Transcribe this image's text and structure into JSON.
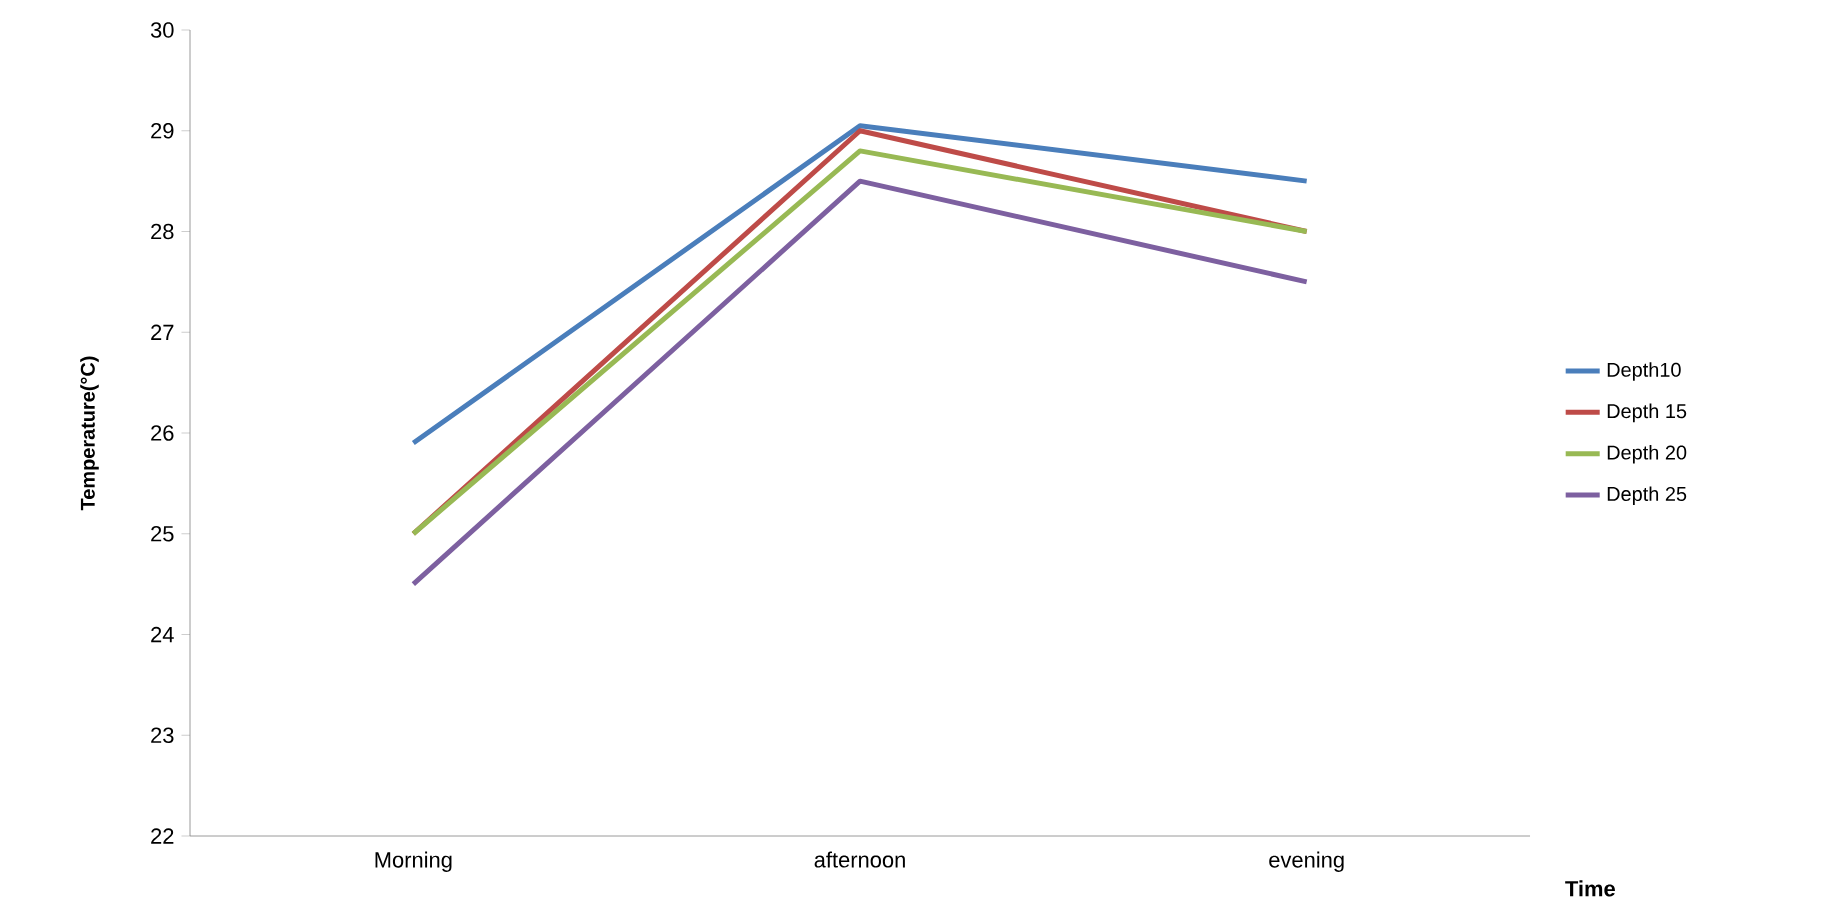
{
  "chart_data": {
    "type": "line",
    "xlabel": "Time",
    "ylabel": "Temperature(°C)",
    "categories": [
      "Morning",
      "afternoon",
      "evening"
    ],
    "series": [
      {
        "name": "Depth10",
        "color": "#4a7ebb",
        "values": [
          25.9,
          29.05,
          28.5
        ]
      },
      {
        "name": "Depth 15",
        "color": "#be4b48",
        "values": [
          25,
          29,
          28
        ]
      },
      {
        "name": "Depth 20",
        "color": "#98b954",
        "values": [
          25,
          28.8,
          28
        ]
      },
      {
        "name": "Depth 25",
        "color": "#7d60a0",
        "values": [
          24.5,
          28.5,
          27.5
        ]
      }
    ],
    "ylim": [
      22,
      30
    ],
    "yticks": [
      22,
      23,
      24,
      25,
      26,
      27,
      28,
      29,
      30
    ],
    "grid": false,
    "legend": "right",
    "marker": "none",
    "line_style": "solid"
  }
}
